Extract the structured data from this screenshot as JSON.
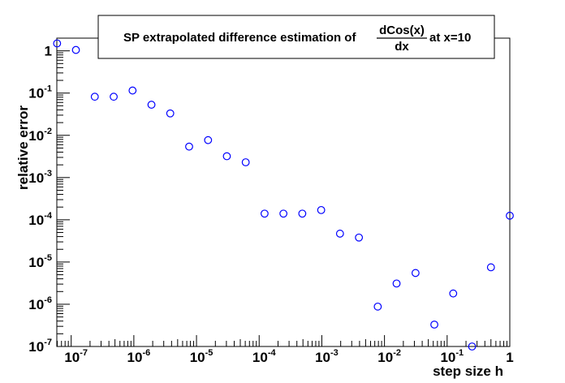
{
  "chart_data": {
    "type": "scatter",
    "title_prefix": "SP extrapolated difference estimation of",
    "title_numerator": "dCos(x)",
    "title_denominator": "dx",
    "title_suffix": "at x=10",
    "xlabel": "step size h",
    "ylabel": "relative error",
    "x_scale": "log",
    "y_scale": "log",
    "xlim": [
      5.9e-08,
      1.0
    ],
    "ylim": [
      1e-07,
      2.0
    ],
    "grid": false,
    "marker": "open-circle",
    "marker_color": "#0000ff",
    "x_ticks": [
      {
        "base": "10",
        "exp": "-7",
        "value": 1e-07
      },
      {
        "base": "10",
        "exp": "-6",
        "value": 1e-06
      },
      {
        "base": "10",
        "exp": "-5",
        "value": 1e-05
      },
      {
        "base": "10",
        "exp": "-4",
        "value": 0.0001
      },
      {
        "base": "10",
        "exp": "-3",
        "value": 0.001
      },
      {
        "base": "10",
        "exp": "-2",
        "value": 0.01
      },
      {
        "base": "10",
        "exp": "-1",
        "value": 0.1
      },
      {
        "base": "1",
        "exp": "",
        "value": 1
      }
    ],
    "y_ticks": [
      {
        "base": "1",
        "exp": "",
        "value": 1
      },
      {
        "base": "10",
        "exp": "-1",
        "value": 0.1
      },
      {
        "base": "10",
        "exp": "-2",
        "value": 0.01
      },
      {
        "base": "10",
        "exp": "-3",
        "value": 0.001
      },
      {
        "base": "10",
        "exp": "-4",
        "value": 0.0001
      },
      {
        "base": "10",
        "exp": "-5",
        "value": 1e-05
      },
      {
        "base": "10",
        "exp": "-6",
        "value": 1e-06
      },
      {
        "base": "10",
        "exp": "-7",
        "value": 1e-07
      }
    ],
    "points": [
      {
        "x": 5.96e-08,
        "y": 1.5
      },
      {
        "x": 1.19e-07,
        "y": 1.05
      },
      {
        "x": 2.38e-07,
        "y": 0.082
      },
      {
        "x": 4.77e-07,
        "y": 0.082
      },
      {
        "x": 9.54e-07,
        "y": 0.115
      },
      {
        "x": 1.91e-06,
        "y": 0.053
      },
      {
        "x": 3.81e-06,
        "y": 0.033
      },
      {
        "x": 7.63e-06,
        "y": 0.0054
      },
      {
        "x": 1.53e-05,
        "y": 0.0077
      },
      {
        "x": 3.05e-05,
        "y": 0.0032
      },
      {
        "x": 6.1e-05,
        "y": 0.0023
      },
      {
        "x": 0.000122,
        "y": 0.00014
      },
      {
        "x": 0.000244,
        "y": 0.00014
      },
      {
        "x": 0.000488,
        "y": 0.00014
      },
      {
        "x": 0.000977,
        "y": 0.00017
      },
      {
        "x": 0.00195,
        "y": 4.7e-05
      },
      {
        "x": 0.00391,
        "y": 3.8e-05
      },
      {
        "x": 0.00781,
        "y": 8.8e-07
      },
      {
        "x": 0.0156,
        "y": 3.1e-06
      },
      {
        "x": 0.0313,
        "y": 5.5e-06
      },
      {
        "x": 0.0625,
        "y": 3.3e-07
      },
      {
        "x": 0.125,
        "y": 1.8e-06
      },
      {
        "x": 0.25,
        "y": 1e-07
      },
      {
        "x": 0.5,
        "y": 7.5e-06
      },
      {
        "x": 1.0,
        "y": 0.000125
      }
    ]
  }
}
